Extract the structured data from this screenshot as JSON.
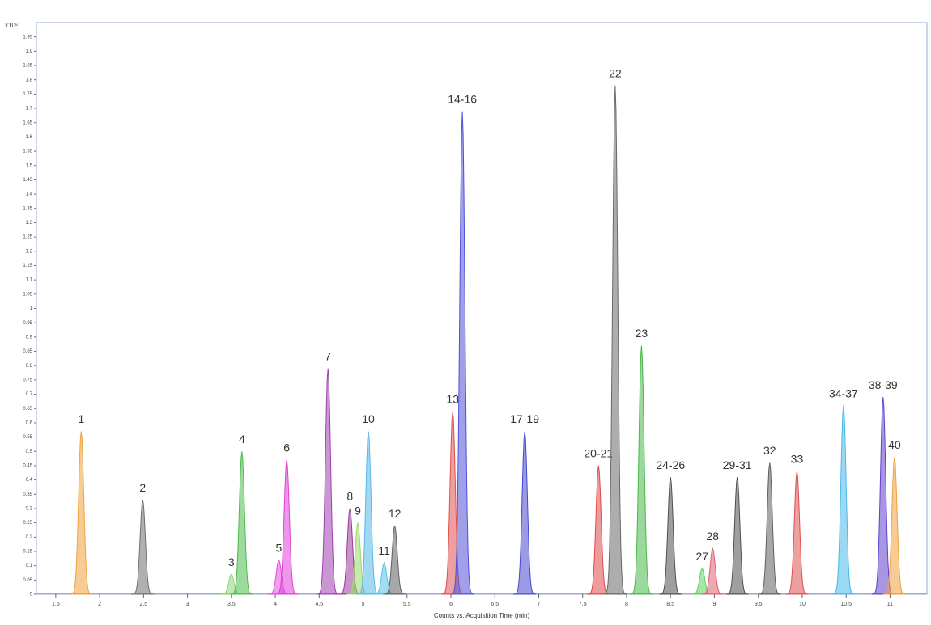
{
  "chart_data": {
    "type": "chromatogram",
    "xlabel": "Counts vs. Acquisition Time (min)",
    "ylabel": "x10⁶",
    "xlim": [
      1.28,
      11.42
    ],
    "xticks": [
      1.5,
      2,
      2.5,
      3,
      3.5,
      4,
      4.5,
      5,
      5.5,
      6,
      6.5,
      7,
      7.5,
      8,
      8.5,
      9,
      9.5,
      10,
      10.5,
      11
    ],
    "ylim": [
      0,
      2
    ],
    "yticks": [
      0,
      0.05,
      0.1,
      0.15,
      0.2,
      0.25,
      0.3,
      0.35,
      0.4,
      0.45,
      0.5,
      0.55,
      0.6,
      0.65,
      0.7,
      0.75,
      0.8,
      0.85,
      0.9,
      0.95,
      1,
      1.05,
      1.1,
      1.15,
      1.2,
      1.25,
      1.3,
      1.35,
      1.4,
      1.45,
      1.5,
      1.55,
      1.6,
      1.65,
      1.7,
      1.75,
      1.8,
      1.85,
      1.9,
      1.95
    ],
    "peaks": [
      {
        "label": "1",
        "time": 1.79,
        "height": 0.57,
        "color": "#f0a23c"
      },
      {
        "label": "2",
        "time": 2.49,
        "height": 0.33,
        "color": "#707070"
      },
      {
        "label": "3",
        "time": 3.5,
        "height": 0.07,
        "color": "#8fd67a"
      },
      {
        "label": "4",
        "time": 3.62,
        "height": 0.5,
        "color": "#4dbb4d"
      },
      {
        "label": "5",
        "time": 4.04,
        "height": 0.12,
        "color": "#e050e0"
      },
      {
        "label": "6",
        "time": 4.13,
        "height": 0.47,
        "color": "#e040d8"
      },
      {
        "label": "7",
        "time": 4.6,
        "height": 0.79,
        "color": "#a040b0"
      },
      {
        "label": "8",
        "time": 4.85,
        "height": 0.3,
        "color": "#9a3a9a"
      },
      {
        "label": "9",
        "time": 4.94,
        "height": 0.25,
        "color": "#9ad86a"
      },
      {
        "label": "10",
        "time": 5.06,
        "height": 0.57,
        "color": "#58b8e8"
      },
      {
        "label": "11",
        "time": 5.24,
        "height": 0.11,
        "color": "#58c0e8"
      },
      {
        "label": "12",
        "time": 5.36,
        "height": 0.24,
        "color": "#606060"
      },
      {
        "label": "13",
        "time": 6.02,
        "height": 0.64,
        "color": "#e05050"
      },
      {
        "label": "14-16",
        "time": 6.13,
        "height": 1.69,
        "color": "#5050d8"
      },
      {
        "label": "17-19",
        "time": 6.84,
        "height": 0.57,
        "color": "#4848d0"
      },
      {
        "label": "20-21",
        "time": 7.68,
        "height": 0.45,
        "color": "#e04848"
      },
      {
        "label": "22",
        "time": 7.87,
        "height": 1.78,
        "color": "#6a6a6a"
      },
      {
        "label": "23",
        "time": 8.17,
        "height": 0.87,
        "color": "#48b848"
      },
      {
        "label": "24-26",
        "time": 8.5,
        "height": 0.41,
        "color": "#505050"
      },
      {
        "label": "27",
        "time": 8.86,
        "height": 0.09,
        "color": "#60d060"
      },
      {
        "label": "28",
        "time": 8.98,
        "height": 0.16,
        "color": "#e06070"
      },
      {
        "label": "29-31",
        "time": 9.26,
        "height": 0.41,
        "color": "#505050"
      },
      {
        "label": "32",
        "time": 9.63,
        "height": 0.46,
        "color": "#606060"
      },
      {
        "label": "33",
        "time": 9.94,
        "height": 0.43,
        "color": "#e05050"
      },
      {
        "label": "34-37",
        "time": 10.47,
        "height": 0.66,
        "color": "#48b8e8"
      },
      {
        "label": "38-39",
        "time": 10.92,
        "height": 0.69,
        "color": "#6040d0"
      },
      {
        "label": "40",
        "time": 11.05,
        "height": 0.48,
        "color": "#f0a040"
      }
    ]
  }
}
